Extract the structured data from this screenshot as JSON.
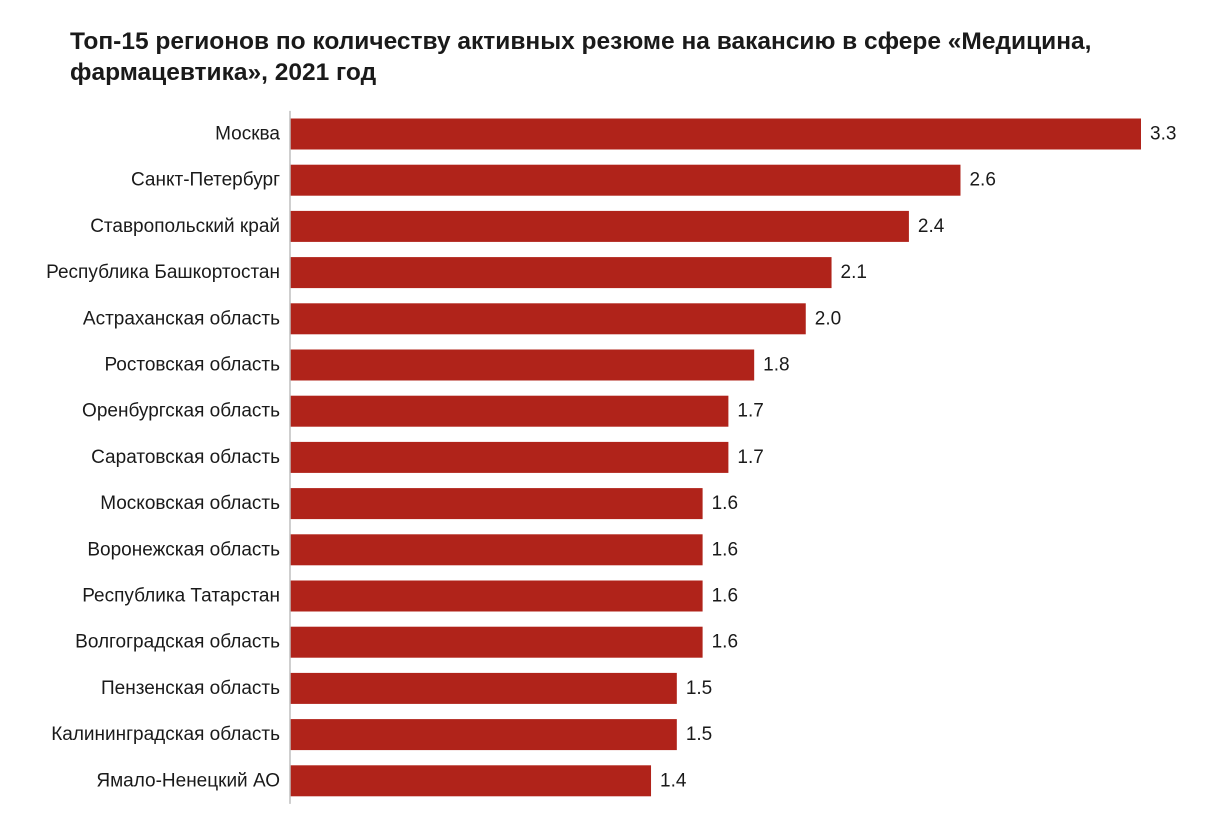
{
  "chart_data": {
    "type": "bar",
    "orientation": "horizontal",
    "title": "Топ-15 регионов по количеству активных резюме на вакансию в сфере «Медицина, фармацевтика», 2021 год",
    "categories": [
      "Москва",
      "Санкт-Петербург",
      "Ставропольский край",
      "Республика Башкортостан",
      "Астраханская область",
      "Ростовская область",
      "Оренбургская область",
      "Саратовская область",
      "Московская область",
      "Воронежская область",
      "Республика Татарстан",
      "Волгоградская область",
      "Пензенская область",
      "Калининградская область",
      "Ямало-Ненецкий АО"
    ],
    "values": [
      3.3,
      2.6,
      2.4,
      2.1,
      2.0,
      1.8,
      1.7,
      1.7,
      1.6,
      1.6,
      1.6,
      1.6,
      1.5,
      1.5,
      1.4
    ],
    "value_labels": [
      "3.3",
      "2.6",
      "2.4",
      "2.1",
      "2.0",
      "1.8",
      "1.7",
      "1.7",
      "1.6",
      "1.6",
      "1.6",
      "1.6",
      "1.5",
      "1.5",
      "1.4"
    ],
    "xlim": [
      0,
      3.3
    ],
    "grid": false,
    "bar_color": "#b0231a"
  }
}
